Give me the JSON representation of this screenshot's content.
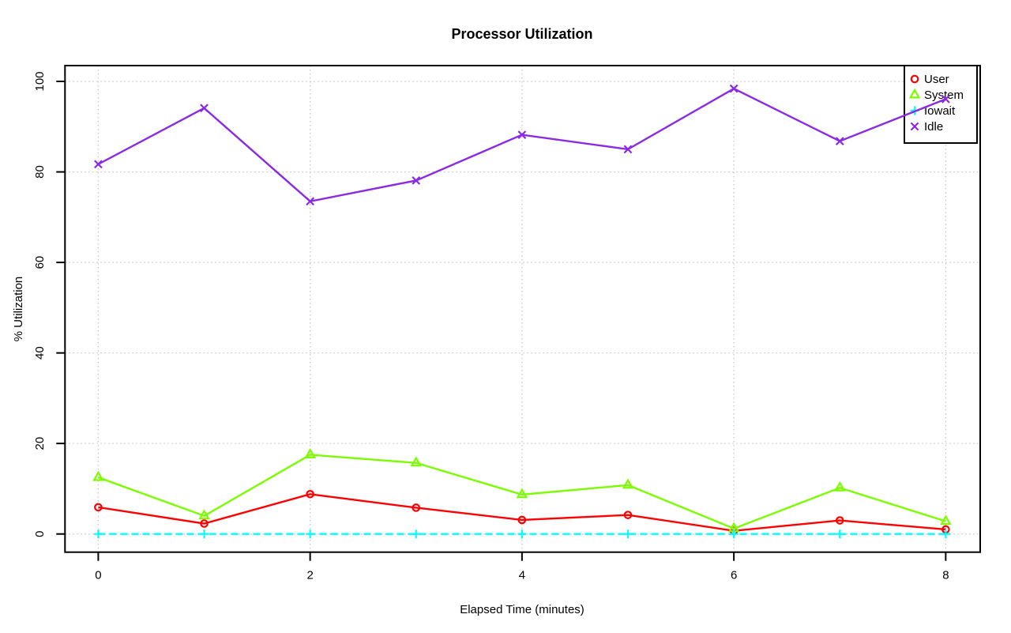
{
  "chart_data": {
    "type": "line",
    "title": "Processor Utilization",
    "xlabel": "Elapsed Time (minutes)",
    "ylabel": "% Utilization",
    "x": [
      0,
      1,
      2,
      3,
      4,
      5,
      6,
      7,
      8
    ],
    "xticks": [
      "0",
      "2",
      "4",
      "6",
      "8"
    ],
    "xtick_values": [
      0,
      2,
      4,
      6,
      8
    ],
    "yticks": [
      "0",
      "20",
      "40",
      "60",
      "80",
      "100"
    ],
    "ytick_values": [
      0,
      20,
      40,
      60,
      80,
      100
    ],
    "xlim": [
      -0.33,
      8.33
    ],
    "ylim": [
      -4,
      104
    ],
    "grid": "dotted",
    "grid_color": "#c6c6c6",
    "axis_color": "#000000",
    "background_color": "#ffffff",
    "legend_position": "top-right",
    "series": [
      {
        "name": "User",
        "color": "#ff0000",
        "marker": "circle",
        "linestyle": "solid",
        "values": [
          5.9,
          2.3,
          8.8,
          5.8,
          3.1,
          4.2,
          0.7,
          3.0,
          1.0
        ]
      },
      {
        "name": "System",
        "color": "#7cfc00",
        "marker": "triangle",
        "linestyle": "solid",
        "values": [
          12.5,
          4.0,
          17.5,
          15.7,
          8.7,
          10.8,
          1.2,
          10.2,
          2.8
        ]
      },
      {
        "name": "Iowait",
        "color": "#00ffff",
        "marker": "plus",
        "linestyle": "dashed",
        "values": [
          0,
          0,
          0,
          0,
          0,
          0,
          0,
          0,
          0
        ]
      },
      {
        "name": "Idle",
        "color": "#8a2be2",
        "marker": "x",
        "linestyle": "solid",
        "values": [
          81.7,
          94.1,
          73.5,
          78.1,
          88.2,
          85.0,
          98.4,
          86.8,
          96.1
        ]
      }
    ]
  }
}
